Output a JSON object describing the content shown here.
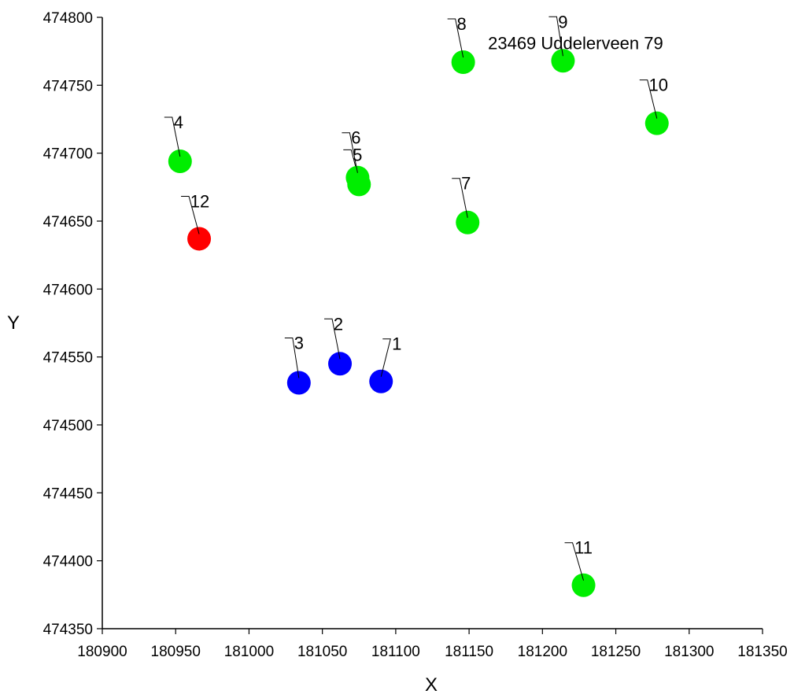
{
  "chart_data": {
    "type": "scatter",
    "title": "",
    "xlabel": "X",
    "ylabel": "Y",
    "xlim": [
      180900,
      181350
    ],
    "ylim": [
      474350,
      474800
    ],
    "xticks": [
      "180900",
      "180950",
      "181000",
      "181050",
      "181100",
      "181150",
      "181200",
      "181250",
      "181300",
      "181350"
    ],
    "yticks": [
      "474350",
      "474400",
      "474450",
      "474500",
      "474550",
      "474600",
      "474650",
      "474700",
      "474750",
      "474800"
    ],
    "grid": false,
    "colors": {
      "blue": "#0000ff",
      "green": "#00ee00",
      "red": "#ff0000"
    },
    "points": [
      {
        "label": "1",
        "x": 181090,
        "y": 474532,
        "color": "blue"
      },
      {
        "label": "2",
        "x": 181062,
        "y": 474545,
        "color": "blue"
      },
      {
        "label": "3",
        "x": 181034,
        "y": 474531,
        "color": "blue"
      },
      {
        "label": "4",
        "x": 180953,
        "y": 474694,
        "color": "green"
      },
      {
        "label": "5",
        "x": 181075,
        "y": 474677,
        "color": "green"
      },
      {
        "label": "6",
        "x": 181074,
        "y": 474682,
        "color": "green"
      },
      {
        "label": "7",
        "x": 181149,
        "y": 474649,
        "color": "green"
      },
      {
        "label": "8",
        "x": 181146,
        "y": 474767,
        "color": "green"
      },
      {
        "label": "9",
        "x": 181214,
        "y": 474768,
        "color": "green"
      },
      {
        "label": "10",
        "x": 181278,
        "y": 474722,
        "color": "green"
      },
      {
        "label": "11",
        "x": 181228,
        "y": 474382,
        "color": "green"
      },
      {
        "label": "12",
        "x": 180966,
        "y": 474637,
        "color": "red"
      }
    ],
    "annotations": [
      {
        "text": "23469 Uddelerveen 79",
        "near": "9"
      }
    ]
  }
}
